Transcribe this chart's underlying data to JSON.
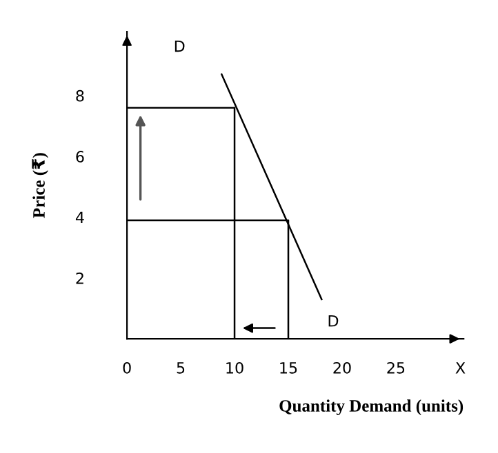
{
  "chart_data": {
    "type": "line",
    "xlabel": "Quantity Demand (units)",
    "ylabel": "Price (₹)",
    "xlim": [
      0,
      31.3
    ],
    "ylim": [
      0,
      10.1
    ],
    "xticks": [
      0,
      5,
      10,
      15,
      20,
      25,
      {
        "value": 31,
        "label": "X"
      }
    ],
    "yticks": [
      2,
      4,
      6,
      8
    ],
    "grid": false,
    "marker": "none",
    "line_style": "solid",
    "series": [
      {
        "x": [
          8.8,
          18.1
        ],
        "values": [
          8.7,
          1.3
        ],
        "color": "#000000"
      },
      {
        "x": [
          0,
          10,
          10
        ],
        "values": [
          7.6,
          7.6,
          0
        ],
        "color": "#000000"
      },
      {
        "x": [
          0,
          15,
          15
        ],
        "values": [
          3.9,
          3.9,
          0
        ],
        "color": "#000000"
      }
    ],
    "annotations": [
      "D",
      "D"
    ]
  }
}
